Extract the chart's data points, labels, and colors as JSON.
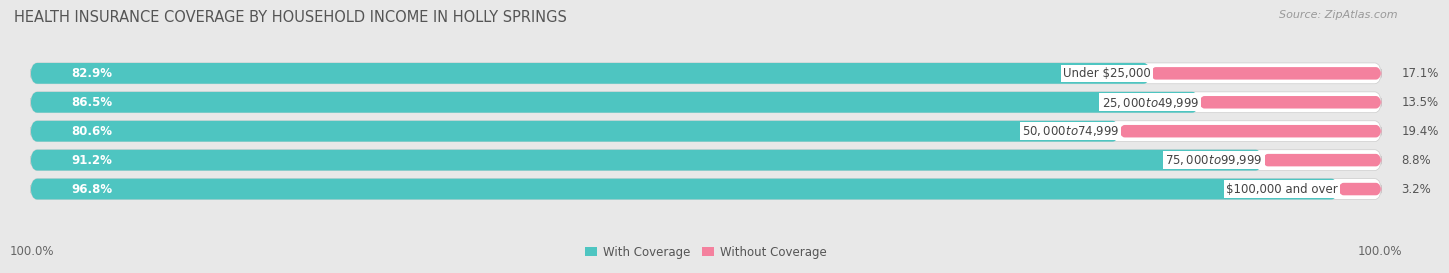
{
  "title": "HEALTH INSURANCE COVERAGE BY HOUSEHOLD INCOME IN HOLLY SPRINGS",
  "source": "Source: ZipAtlas.com",
  "categories": [
    "Under $25,000",
    "$25,000 to $49,999",
    "$50,000 to $74,999",
    "$75,000 to $99,999",
    "$100,000 and over"
  ],
  "with_coverage": [
    82.9,
    86.5,
    80.6,
    91.2,
    96.8
  ],
  "without_coverage": [
    17.1,
    13.5,
    19.4,
    8.8,
    3.2
  ],
  "color_with": "#4EC5C1",
  "color_without": "#F4819E",
  "title_fontsize": 10.5,
  "source_fontsize": 8,
  "label_fontsize": 8.5,
  "pct_fontsize": 8.5,
  "tick_fontsize": 8.5,
  "legend_fontsize": 8.5,
  "bar_height": 0.72,
  "total_width": 100,
  "bg_color": "#e8e8e8",
  "bar_bg_color": "#f0f0f0",
  "row_bg_color": "#ffffff"
}
